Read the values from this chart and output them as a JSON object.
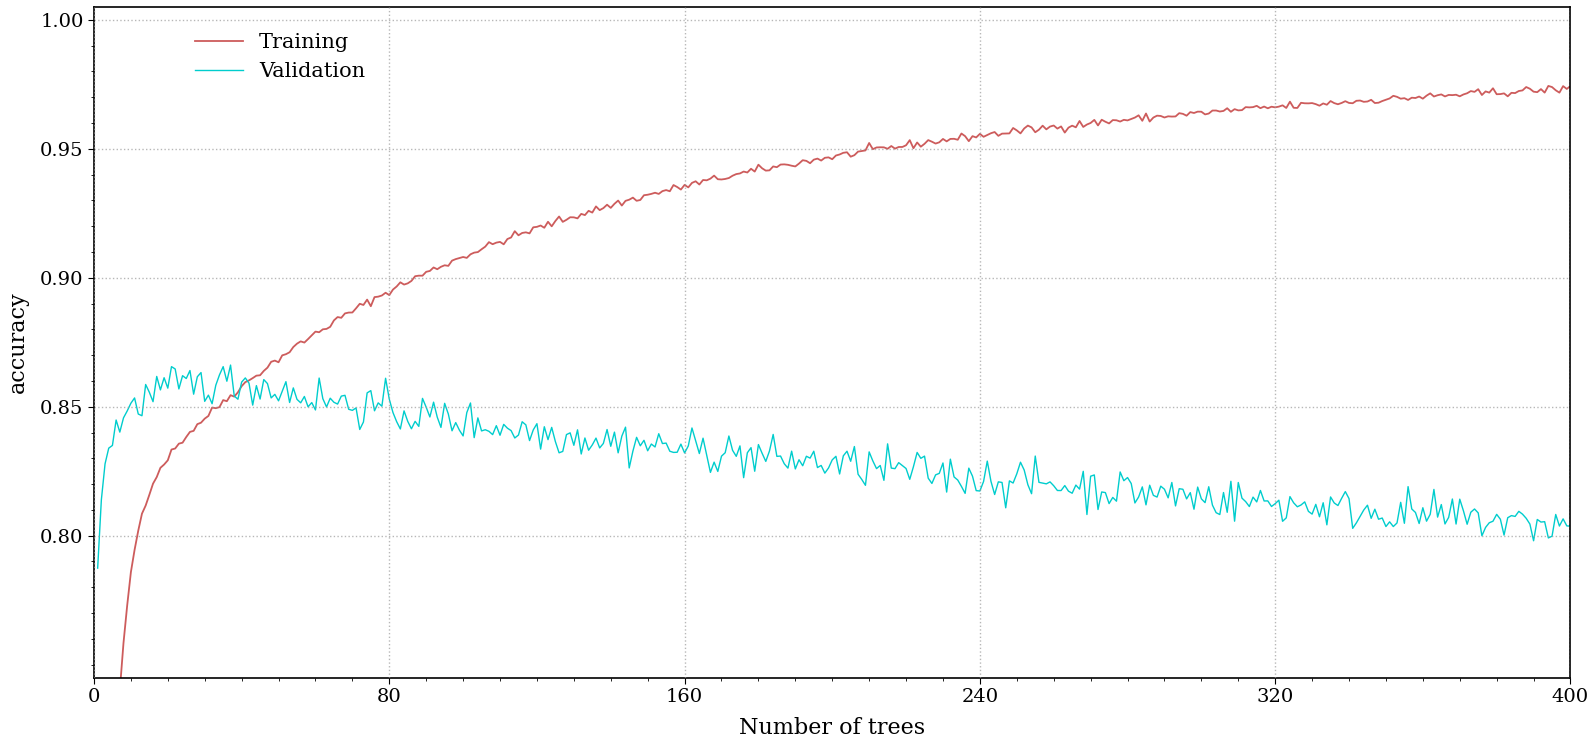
{
  "title": "",
  "xlabel": "Number of trees",
  "ylabel": "accuracy",
  "xlim": [
    0,
    400
  ],
  "ylim": [
    0.745,
    1.005
  ],
  "yticks": [
    0.8,
    0.85,
    0.9,
    0.95,
    1.0
  ],
  "xticks": [
    0,
    80,
    160,
    240,
    320,
    400
  ],
  "training_color": "#cd5c5c",
  "validation_color": "#00cdcd",
  "background_color": "#ffffff",
  "grid_color": "#999999",
  "legend_labels": [
    "Training",
    "Validation"
  ],
  "n_trees": 400,
  "seed": 42
}
